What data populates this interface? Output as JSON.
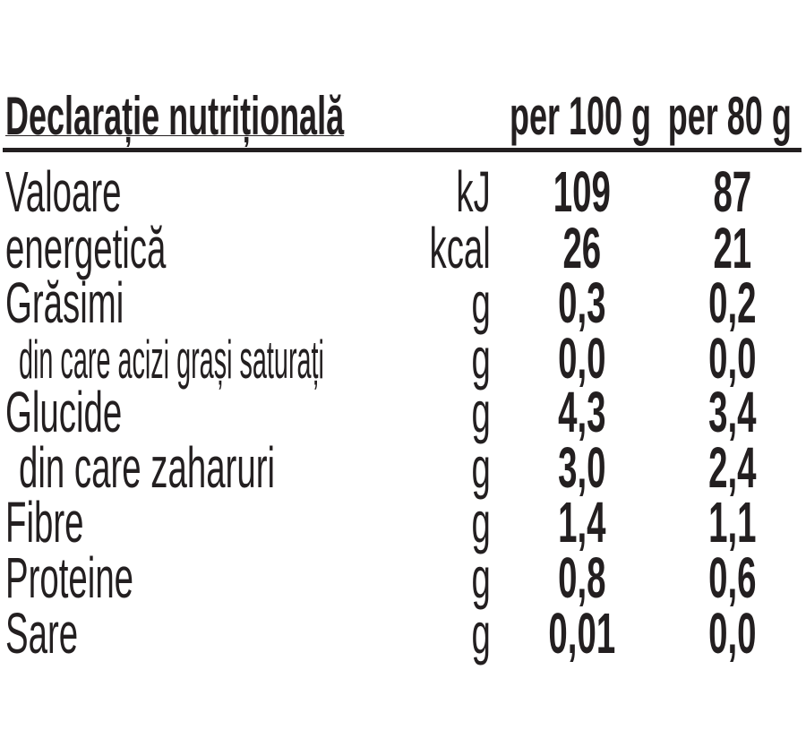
{
  "header": {
    "title": "Declarație nutrițională",
    "col1": "per 100 g",
    "col2": "per 80 g"
  },
  "rows": [
    {
      "label": "Valoare",
      "unit": "kJ",
      "per100": "109",
      "per80": "87"
    },
    {
      "label": "energetică",
      "unit": "kcal",
      "per100": "26",
      "per80": "21"
    },
    {
      "label": "Grăsimi",
      "unit": "g",
      "per100": "0,3",
      "per80": "0,2"
    },
    {
      "label": "din care acizi grași saturați",
      "unit": "g",
      "per100": "0,0",
      "per80": "0,0"
    },
    {
      "label": "Glucide",
      "unit": "g",
      "per100": "4,3",
      "per80": "3,4"
    },
    {
      "label": "din care zaharuri",
      "unit": "g",
      "per100": "3,0",
      "per80": "2,4"
    },
    {
      "label": "Fibre",
      "unit": "g",
      "per100": "1,4",
      "per80": "1,1"
    },
    {
      "label": "Proteine",
      "unit": "g",
      "per100": "0,8",
      "per80": "0,6"
    },
    {
      "label": "Sare",
      "unit": "g",
      "per100": "0,01",
      "per80": "0,0"
    }
  ]
}
